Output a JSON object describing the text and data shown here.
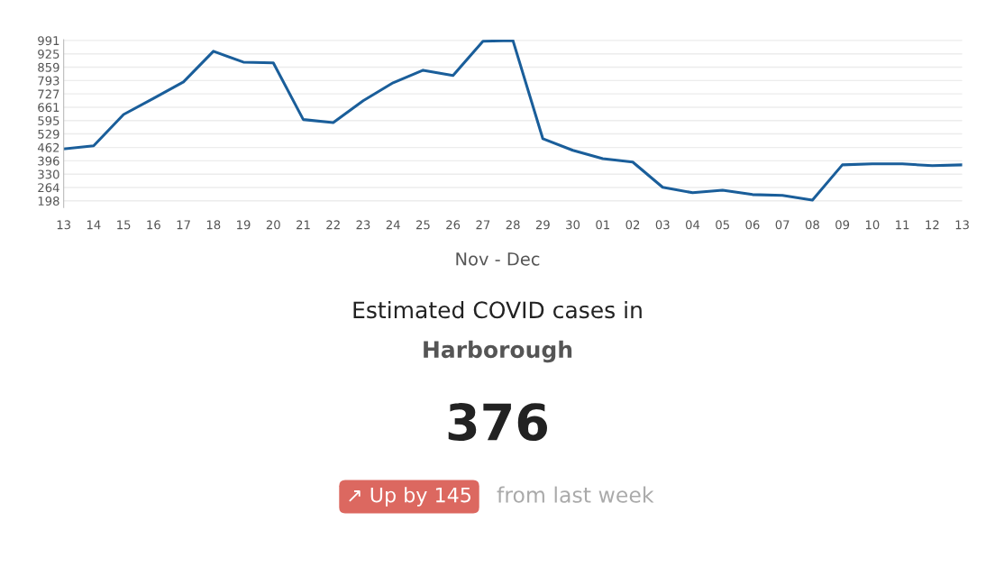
{
  "chart_data": {
    "type": "line",
    "title": "Estimated COVID cases in",
    "subtitle": "Harborough",
    "xlabel": "Nov - Dec",
    "categories": [
      "13",
      "14",
      "15",
      "16",
      "17",
      "18",
      "19",
      "20",
      "21",
      "22",
      "23",
      "24",
      "25",
      "26",
      "27",
      "28",
      "29",
      "30",
      "01",
      "02",
      "03",
      "04",
      "05",
      "06",
      "07",
      "08",
      "09",
      "10",
      "11",
      "12",
      "13"
    ],
    "series": [
      {
        "color": "#1a5e9a",
        "values": [
          455,
          470,
          625,
          705,
          786,
          938,
          884,
          880,
          600,
          585,
          693,
          782,
          844,
          818,
          987,
          991,
          505,
          448,
          407,
          390,
          265,
          238,
          251,
          229,
          225,
          202,
          376,
          381,
          381,
          372,
          376
        ]
      }
    ],
    "ylim": [
      165,
      995
    ],
    "yticks": [
      198,
      264,
      330,
      396,
      462,
      529,
      595,
      661,
      727,
      793,
      859,
      925,
      991
    ],
    "grid": "y",
    "legend": false,
    "marker": "none",
    "line_style": "solid",
    "annotations": [
      "376",
      "↗ Up by 145",
      "from last week"
    ]
  }
}
